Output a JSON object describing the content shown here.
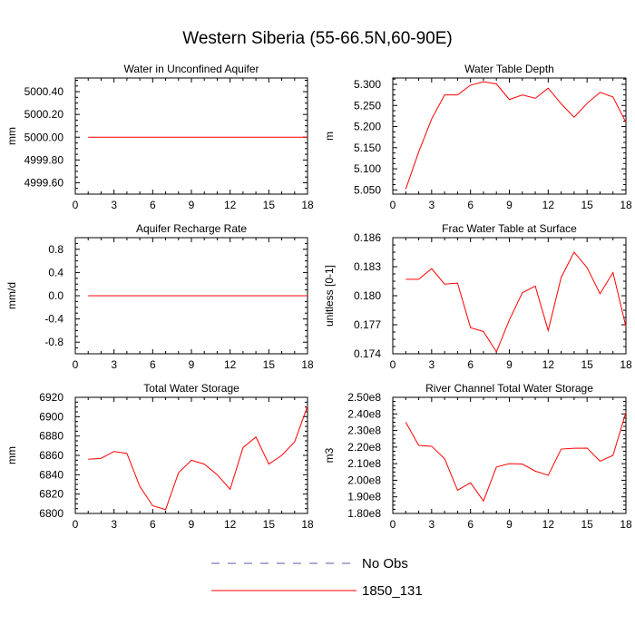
{
  "title": "Western Siberia (55-66.5N,60-90E)",
  "legend": {
    "placement": "bottom-center",
    "entries": [
      {
        "label": "No Obs",
        "color": "#5a5aaa",
        "style": "dashed"
      },
      {
        "label": "1850_131",
        "color": "#ff0000",
        "style": "solid"
      }
    ]
  },
  "chart_data": [
    {
      "type": "line",
      "title": "Water in Unconfined Aquifer",
      "ylabel": "mm",
      "xlim": [
        0,
        18
      ],
      "ylim": [
        4999.5,
        5000.52
      ],
      "xticks": [
        0,
        3,
        6,
        9,
        12,
        15,
        18
      ],
      "yticks": [
        4999.6,
        4999.8,
        5000.0,
        5000.2,
        5000.4
      ],
      "ytick_labels": [
        "4999.60",
        "4999.80",
        "5000.00",
        "5000.20",
        "5000.40"
      ],
      "series": [
        {
          "name": "1850_131",
          "color": "#ff0000",
          "x": [
            1,
            18
          ],
          "y": [
            5000.0,
            5000.0
          ]
        }
      ]
    },
    {
      "type": "line",
      "title": "Water Table Depth",
      "ylabel": "m",
      "xlim": [
        0,
        18
      ],
      "ylim": [
        5.04,
        5.315
      ],
      "xticks": [
        0,
        3,
        6,
        9,
        12,
        15,
        18
      ],
      "yticks": [
        5.05,
        5.1,
        5.15,
        5.2,
        5.25,
        5.3
      ],
      "ytick_labels": [
        "5.050",
        "5.100",
        "5.150",
        "5.200",
        "5.250",
        "5.300"
      ],
      "series": [
        {
          "name": "1850_131",
          "color": "#ff0000",
          "x": [
            1,
            2,
            3,
            4,
            5,
            6,
            7,
            8,
            9,
            10,
            11,
            12,
            13,
            14,
            15,
            16,
            17,
            18
          ],
          "y": [
            5.052,
            5.14,
            5.218,
            5.275,
            5.275,
            5.298,
            5.306,
            5.301,
            5.264,
            5.275,
            5.267,
            5.291,
            5.254,
            5.222,
            5.255,
            5.281,
            5.27,
            5.21
          ]
        }
      ]
    },
    {
      "type": "line",
      "title": "Aquifer Recharge Rate",
      "ylabel": "mm/d",
      "xlim": [
        0,
        18
      ],
      "ylim": [
        -1.0,
        1.0
      ],
      "xticks": [
        0,
        3,
        6,
        9,
        12,
        15,
        18
      ],
      "yticks": [
        -0.8,
        -0.4,
        0.0,
        0.4,
        0.8
      ],
      "ytick_labels": [
        "-0.8",
        "-0.4",
        "0.0",
        "0.4",
        "0.8"
      ],
      "series": [
        {
          "name": "1850_131",
          "color": "#ff0000",
          "x": [
            1,
            18
          ],
          "y": [
            0.0,
            0.0
          ]
        }
      ]
    },
    {
      "type": "line",
      "title": "Frac Water Table at Surface",
      "ylabel": "unitless [0-1]",
      "xlim": [
        0,
        18
      ],
      "ylim": [
        0.174,
        0.186
      ],
      "xticks": [
        0,
        3,
        6,
        9,
        12,
        15,
        18
      ],
      "yticks": [
        0.174,
        0.177,
        0.18,
        0.183,
        0.186
      ],
      "ytick_labels": [
        "0.174",
        "0.177",
        "0.180",
        "0.183",
        "0.186"
      ],
      "series": [
        {
          "name": "1850_131",
          "color": "#ff0000",
          "x": [
            1,
            2,
            3,
            4,
            5,
            6,
            7,
            8,
            9,
            10,
            11,
            12,
            13,
            14,
            15,
            16,
            17,
            18
          ],
          "y": [
            0.1817,
            0.1817,
            0.1828,
            0.1812,
            0.1813,
            0.1767,
            0.1763,
            0.1742,
            0.1775,
            0.1803,
            0.181,
            0.1764,
            0.1819,
            0.1845,
            0.1829,
            0.1802,
            0.1824,
            0.1768
          ]
        }
      ]
    },
    {
      "type": "line",
      "title": "Total Water Storage",
      "ylabel": "mm",
      "xlim": [
        0,
        18
      ],
      "ylim": [
        6800,
        6920
      ],
      "xticks": [
        0,
        3,
        6,
        9,
        12,
        15,
        18
      ],
      "yticks": [
        6800,
        6820,
        6840,
        6860,
        6880,
        6900,
        6920
      ],
      "ytick_labels": [
        "6800",
        "6820",
        "6840",
        "6860",
        "6880",
        "6900",
        "6920"
      ],
      "series": [
        {
          "name": "1850_131",
          "color": "#ff0000",
          "x": [
            1,
            2,
            3,
            4,
            5,
            6,
            7,
            8,
            9,
            10,
            11,
            12,
            13,
            14,
            15,
            16,
            17,
            18
          ],
          "y": [
            6856,
            6857,
            6864,
            6862,
            6828,
            6808,
            6804,
            6842,
            6855,
            6851,
            6840,
            6825,
            6868,
            6879,
            6851,
            6860,
            6874,
            6911
          ]
        }
      ]
    },
    {
      "type": "line",
      "title": "River Channel Total Water Storage",
      "ylabel": "m3",
      "xlim": [
        0,
        18
      ],
      "ylim": [
        180000000,
        250000000
      ],
      "xticks": [
        0,
        3,
        6,
        9,
        12,
        15,
        18
      ],
      "yticks": [
        180000000,
        190000000,
        200000000,
        210000000,
        220000000,
        230000000,
        240000000,
        250000000
      ],
      "ytick_labels": [
        "1.80e8",
        "1.90e8",
        "2.00e8",
        "2.10e8",
        "2.20e8",
        "2.30e8",
        "2.40e8",
        "2.50e8"
      ],
      "series": [
        {
          "name": "1850_131",
          "color": "#ff0000",
          "x": [
            1,
            2,
            3,
            4,
            5,
            6,
            7,
            8,
            9,
            10,
            11,
            12,
            13,
            14,
            15,
            16,
            17,
            18
          ],
          "y": [
            235000000,
            221000000,
            220500000,
            213000000,
            194000000,
            198500000,
            187500000,
            208000000,
            210000000,
            209800000,
            205500000,
            203000000,
            218800000,
            219300000,
            219400000,
            211500000,
            215000000,
            241000000
          ]
        }
      ]
    }
  ]
}
